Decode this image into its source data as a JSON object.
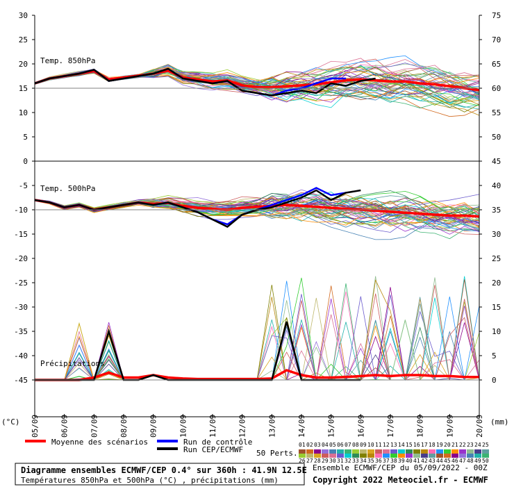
{
  "chart_data": {
    "type": "line",
    "left_axis_unit": "(°C)",
    "right_axis_unit": "(mm)",
    "left_ticks": [
      "30",
      "25",
      "20",
      "15",
      "10",
      "5",
      "0",
      "-5",
      "-10",
      "-15",
      "-20",
      "-25",
      "-30",
      "-35",
      "-40",
      "-45"
    ],
    "right_ticks": [
      "75",
      "70",
      "65",
      "60",
      "55",
      "50",
      "45",
      "40",
      "35",
      "30",
      "25",
      "20",
      "15",
      "10",
      "5",
      "0"
    ],
    "x_ticks": [
      "05/09",
      "06/09",
      "07/09",
      "08/09",
      "09/09",
      "10/09",
      "11/09",
      "12/09",
      "13/09",
      "14/09",
      "15/09",
      "16/09",
      "17/09",
      "18/09",
      "19/09",
      "20/09"
    ],
    "panels": [
      {
        "label": "Temp. 850hPa"
      },
      {
        "label": "Temp. 500hPa"
      },
      {
        "label": "Précipitations"
      }
    ],
    "series": [
      {
        "name": "Moyenne des scénarios",
        "color": "#ff0000",
        "panel": "850",
        "values": [
          16,
          17,
          17.5,
          18,
          18.5,
          16.8,
          17.2,
          17.6,
          18,
          18.6,
          17.2,
          16.8,
          16.4,
          16.6,
          15.6,
          15.2,
          15.2,
          15.4,
          15.6,
          15.8,
          16.2,
          16.6,
          16.8,
          16.6,
          16.4,
          16.4,
          16.0,
          15.8,
          15.4,
          15.0,
          14.6
        ]
      },
      {
        "name": "Run de contrôle",
        "color": "#0000ff",
        "panel": "850",
        "values": [
          16,
          17,
          17.5,
          18,
          18.8,
          16.5,
          17,
          17.5,
          18,
          19,
          17,
          16.5,
          16,
          16.5,
          14.5,
          14,
          13.5,
          14.5,
          15,
          16,
          17,
          17
        ]
      },
      {
        "name": "Run CEP/ECMWF",
        "color": "#000000",
        "panel": "850",
        "values": [
          16,
          17,
          17.5,
          18,
          18.8,
          16.5,
          17,
          17.5,
          18,
          19,
          17,
          16.5,
          16,
          16.5,
          14.5,
          14,
          13.5,
          14,
          14.5,
          14,
          16,
          15.5,
          16.5,
          17
        ]
      },
      {
        "name": "Moyenne des scénarios",
        "color": "#ff0000",
        "panel": "500",
        "values": [
          -8,
          -8.5,
          -9.5,
          -9,
          -10,
          -9.5,
          -9,
          -8.5,
          -8.8,
          -8.6,
          -9.2,
          -9.6,
          -9.8,
          -10,
          -9.6,
          -9.4,
          -9.2,
          -9,
          -9.2,
          -9.4,
          -9.6,
          -9.8,
          -10,
          -10.2,
          -10.4,
          -10.6,
          -10.8,
          -11,
          -11.2,
          -11.2,
          -11.4
        ]
      },
      {
        "name": "Run de contrôle",
        "color": "#0000ff",
        "panel": "500",
        "values": [
          -8,
          -8.5,
          -9.5,
          -9,
          -10,
          -9.5,
          -9,
          -8.5,
          -9,
          -8.5,
          -9.5,
          -10.5,
          -12,
          -13,
          -11,
          -10,
          -9,
          -8,
          -7,
          -5.5,
          -7,
          -6.5
        ]
      },
      {
        "name": "Run CEP/ECMWF",
        "color": "#000000",
        "panel": "500",
        "values": [
          -8,
          -8.5,
          -9.5,
          -9,
          -10,
          -9.5,
          -9,
          -8.5,
          -9,
          -8.5,
          -9.5,
          -10.5,
          -12,
          -13.5,
          -11,
          -10,
          -9.5,
          -8.5,
          -7.5,
          -6,
          -8,
          -6.5,
          -6
        ]
      },
      {
        "name": "Moyenne des scénarios",
        "color": "#ff0000",
        "panel": "precip",
        "values": [
          0,
          0,
          0,
          0,
          0.5,
          1.5,
          0.5,
          0.5,
          1,
          0.5,
          0.3,
          0.2,
          0.2,
          0.2,
          0.2,
          0.2,
          0.3,
          2,
          1,
          0.5,
          0.5,
          0.6,
          0.8,
          1,
          0.8,
          1,
          1,
          0.8,
          0.8,
          0.6,
          0.6
        ]
      },
      {
        "name": "Run CEP/ECMWF",
        "color": "#000000",
        "panel": "precip",
        "values": [
          0,
          0,
          0,
          0,
          0,
          10,
          0,
          0,
          1,
          0,
          0,
          0,
          0,
          0,
          0,
          0,
          0,
          12,
          0,
          0,
          0,
          0,
          0
        ]
      }
    ]
  },
  "legend": {
    "mean": "Moyenne des scénarios",
    "control": "Run de contrôle",
    "cep": "Run CEP/ECMWF",
    "perts": "50 Perts.",
    "perts_row1": [
      "01",
      "02",
      "03",
      "04",
      "05",
      "06",
      "07",
      "08",
      "09",
      "10",
      "11",
      "12",
      "13",
      "14",
      "15",
      "16",
      "17",
      "18",
      "19",
      "20",
      "21",
      "22",
      "23",
      "24",
      "25"
    ],
    "perts_row2": [
      "26",
      "27",
      "28",
      "29",
      "30",
      "31",
      "32",
      "33",
      "34",
      "35",
      "36",
      "37",
      "38",
      "39",
      "40",
      "41",
      "42",
      "43",
      "44",
      "45",
      "46",
      "47",
      "48",
      "49",
      "50"
    ]
  },
  "footer": {
    "title": "Diagramme ensembles ECMWF/CEP 0.4° sur 360h : 41.9N 12.5E",
    "subtitle": "Températures 850hPa et 500hPa (°C) , précipitations (mm)",
    "run_info": "Ensemble ECMWF/CEP du 05/09/2022 - 00Z",
    "copyright": "Copyright 2022 Meteociel.fr - ECMWF"
  },
  "colors": {
    "mean": "#ff0000",
    "control": "#0000ff",
    "cep": "#000000",
    "axis": "#000000",
    "grid": "#808080",
    "zero_line": "#000000"
  }
}
